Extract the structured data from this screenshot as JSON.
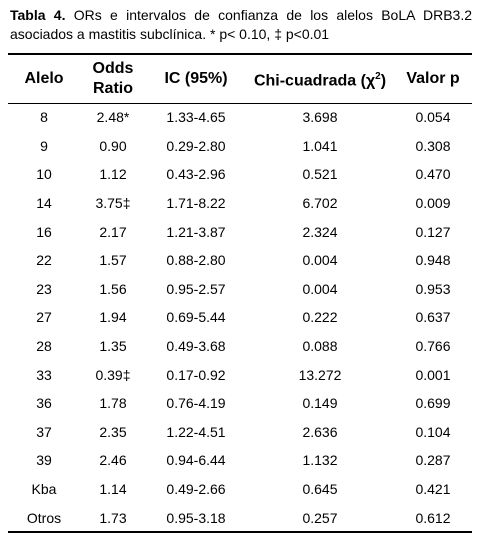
{
  "caption": {
    "label": "Tabla 4.",
    "text": " ORs e intervalos de confianza de los alelos BoLA DRB3.2 asociados a mastitis subclínica. * p< 0.10, ‡ p<0.01"
  },
  "table": {
    "headers": {
      "alelo": "Alelo",
      "odds_line1": "Odds",
      "odds_line2": "Ratio",
      "ic": "IC (95%)",
      "chi_prefix": "Chi-cuadrada (",
      "chi_symbol": "χ",
      "chi_sup": "2",
      "chi_suffix": ")",
      "valor_p": "Valor p"
    },
    "rows": [
      {
        "alelo": "8",
        "or": "2.48*",
        "ic": "1.33-4.65",
        "chi": "3.698",
        "p": "0.054"
      },
      {
        "alelo": "9",
        "or": "0.90",
        "ic": "0.29-2.80",
        "chi": "1.041",
        "p": "0.308"
      },
      {
        "alelo": "10",
        "or": "1.12",
        "ic": "0.43-2.96",
        "chi": "0.521",
        "p": "0.470"
      },
      {
        "alelo": "14",
        "or": "3.75‡",
        "ic": "1.71-8.22",
        "chi": "6.702",
        "p": "0.009"
      },
      {
        "alelo": "16",
        "or": "2.17",
        "ic": "1.21-3.87",
        "chi": "2.324",
        "p": "0.127"
      },
      {
        "alelo": "22",
        "or": "1.57",
        "ic": "0.88-2.80",
        "chi": "0.004",
        "p": "0.948"
      },
      {
        "alelo": "23",
        "or": "1.56",
        "ic": "0.95-2.57",
        "chi": "0.004",
        "p": "0.953"
      },
      {
        "alelo": "27",
        "or": "1.94",
        "ic": "0.69-5.44",
        "chi": "0.222",
        "p": "0.637"
      },
      {
        "alelo": "28",
        "or": "1.35",
        "ic": "0.49-3.68",
        "chi": "0.088",
        "p": "0.766"
      },
      {
        "alelo": "33",
        "or": "0.39‡",
        "ic": "0.17-0.92",
        "chi": "13.272",
        "p": "0.001"
      },
      {
        "alelo": "36",
        "or": "1.78",
        "ic": "0.76-4.19",
        "chi": "0.149",
        "p": "0.699"
      },
      {
        "alelo": "37",
        "or": "2.35",
        "ic": "1.22-4.51",
        "chi": "2.636",
        "p": "0.104"
      },
      {
        "alelo": "39",
        "or": "2.46",
        "ic": "0.94-6.44",
        "chi": "1.132",
        "p": "0.287"
      },
      {
        "alelo": "Kba",
        "or": "1.14",
        "ic": "0.49-2.66",
        "chi": "0.645",
        "p": "0.421"
      },
      {
        "alelo": "Otros",
        "or": "1.73",
        "ic": "0.95-3.18",
        "chi": "0.257",
        "p": "0.612"
      }
    ]
  }
}
